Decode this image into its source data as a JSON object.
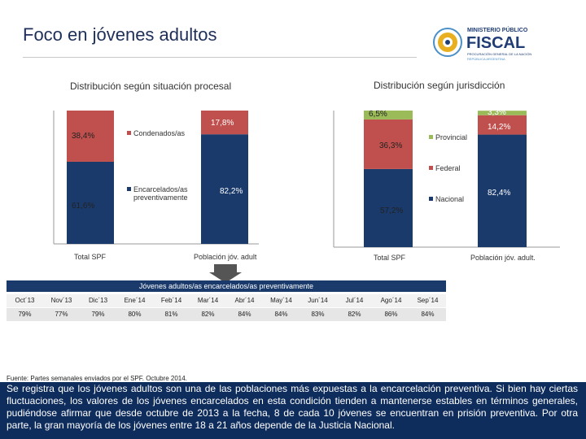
{
  "header": {
    "title": "Foco en jóvenes adultos",
    "logo": {
      "line1": "MINISTERIO PÚBLICO",
      "line2": "FISCAL",
      "line3": "PROCURACIÓN GENERAL DE LA NACIÓN",
      "line4": "REPÚBLICA ARGENTINA"
    }
  },
  "colors": {
    "navy": "#1a3a6b",
    "red": "#c0504d",
    "green": "#9bbb59",
    "logo_blue": "#1f3d74",
    "logo_sun": "#e8b020",
    "logo_sky": "#4a90c8"
  },
  "chart_data": [
    {
      "type": "bar",
      "stacked": true,
      "normalized": true,
      "title": "Distribución según situación procesal",
      "categories": [
        "Total SPF",
        "Población jóv. adult"
      ],
      "series": [
        {
          "name": "Encarcelados/as preventivamente",
          "values": [
            61.6,
            82.2
          ],
          "labels": [
            "61,6%",
            "82,2%"
          ]
        },
        {
          "name": "Condenados/as",
          "values": [
            38.4,
            17.8
          ],
          "labels": [
            "38,4%",
            "17,8%"
          ]
        }
      ],
      "legend": [
        "Condenados/as",
        "Encarcelados/as preventivamente"
      ]
    },
    {
      "type": "bar",
      "stacked": true,
      "normalized": true,
      "title": "Distribución según jurisdicción",
      "categories": [
        "Total SPF",
        "Población jóv. adult."
      ],
      "series": [
        {
          "name": "Nacional",
          "values": [
            57.2,
            82.4
          ],
          "labels": [
            "57,2%",
            "82,4%"
          ]
        },
        {
          "name": "Federal",
          "values": [
            36.3,
            14.2
          ],
          "labels": [
            "36,3%",
            "14,2%"
          ]
        },
        {
          "name": "Provincial",
          "values": [
            6.5,
            3.3
          ],
          "labels": [
            "6,5%",
            "3,3%"
          ]
        }
      ],
      "legend": [
        "Provincial",
        "Federal",
        "Nacional"
      ]
    },
    {
      "type": "table",
      "title": "Jóvenes adultos/as encarcelados/as preventivamente",
      "columns": [
        "Oct´13",
        "Nov´13",
        "Dic´13",
        "Ene´14",
        "Feb´14",
        "Mar´14",
        "Abr´14",
        "May´14",
        "Jun´14",
        "Jul´14",
        "Ago´14",
        "Sep´14"
      ],
      "values": [
        "79%",
        "77%",
        "79%",
        "80%",
        "81%",
        "82%",
        "84%",
        "84%",
        "83%",
        "82%",
        "86%",
        "84%"
      ]
    }
  ],
  "source": "Fuente: Partes semanales enviados por el SPF. Octubre 2014.",
  "note": "Se registra que los jóvenes adultos son una de las poblaciones más expuestas a la encarcelación preventiva. Si bien hay ciertas fluctuaciones, los valores de los jóvenes encarcelados en esta condición tienden a mantenerse estables en términos generales, pudiéndose afirmar que desde octubre de 2013 a la fecha, 8 de cada 10 jóvenes se encuentran en prisión preventiva. Por otra parte, la gran mayoría de los jóvenes entre 18 a 21 años depende de la Justicia Nacional."
}
